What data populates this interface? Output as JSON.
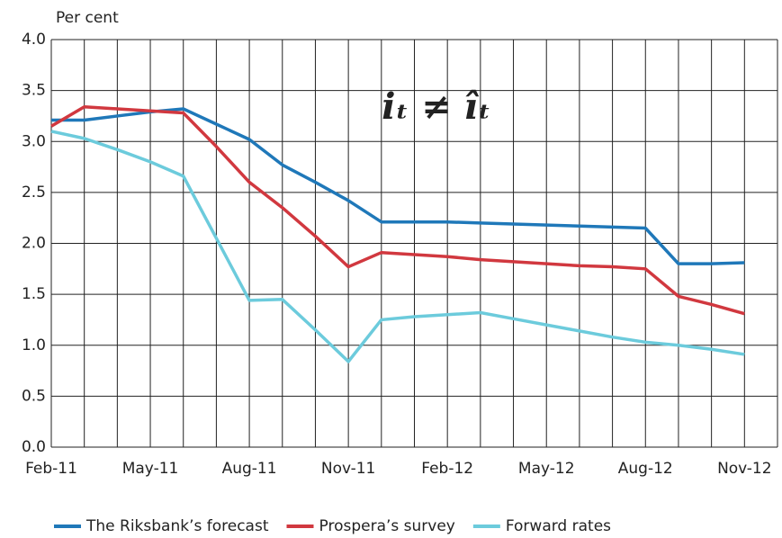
{
  "chart_data": {
    "type": "line",
    "y_label": "Per cent",
    "annotation": "iₜ ≠ îₜ",
    "categories": [
      "Feb-11",
      null,
      null,
      "May-11",
      null,
      null,
      "Aug-11",
      null,
      null,
      "Nov-11",
      null,
      null,
      "Feb-12",
      null,
      null,
      "May-12",
      null,
      null,
      "Aug-12",
      null,
      null,
      "Nov-12",
      null
    ],
    "series": [
      {
        "name": "The Riksbank’s forecast",
        "color": "#1f78b9",
        "values": [
          3.21,
          3.21,
          3.25,
          3.29,
          3.32,
          3.17,
          3.02,
          2.77,
          2.6,
          2.42,
          2.21,
          2.21,
          2.21,
          2.2,
          2.19,
          2.18,
          2.17,
          2.16,
          2.15,
          1.8,
          1.8,
          1.81,
          null
        ]
      },
      {
        "name": "Prospera’s survey",
        "color": "#d1383f",
        "values": [
          3.15,
          3.34,
          3.32,
          3.3,
          3.28,
          2.95,
          2.6,
          2.35,
          2.07,
          1.77,
          1.91,
          1.89,
          1.87,
          1.84,
          1.82,
          1.8,
          1.78,
          1.77,
          1.75,
          1.48,
          1.4,
          1.31,
          null
        ]
      },
      {
        "name": "Forward rates",
        "color": "#6ccbdc",
        "values": [
          3.1,
          3.03,
          2.92,
          2.8,
          2.66,
          2.05,
          1.44,
          1.45,
          1.15,
          0.84,
          1.25,
          1.28,
          1.3,
          1.32,
          1.26,
          1.2,
          1.14,
          1.08,
          1.03,
          1.0,
          0.96,
          0.91,
          null
        ]
      }
    ],
    "ylim": [
      0,
      4
    ],
    "yticks": [
      {
        "value": 0,
        "label": "0.0"
      },
      0.5,
      {
        "value": 1,
        "label": "1.0"
      },
      1.5,
      {
        "value": 2,
        "label": "2.0"
      },
      2.5,
      {
        "value": 3,
        "label": "3.0"
      },
      3.5,
      {
        "value": 4,
        "label": "4.0"
      }
    ],
    "grid": true,
    "legend": "bottom"
  }
}
